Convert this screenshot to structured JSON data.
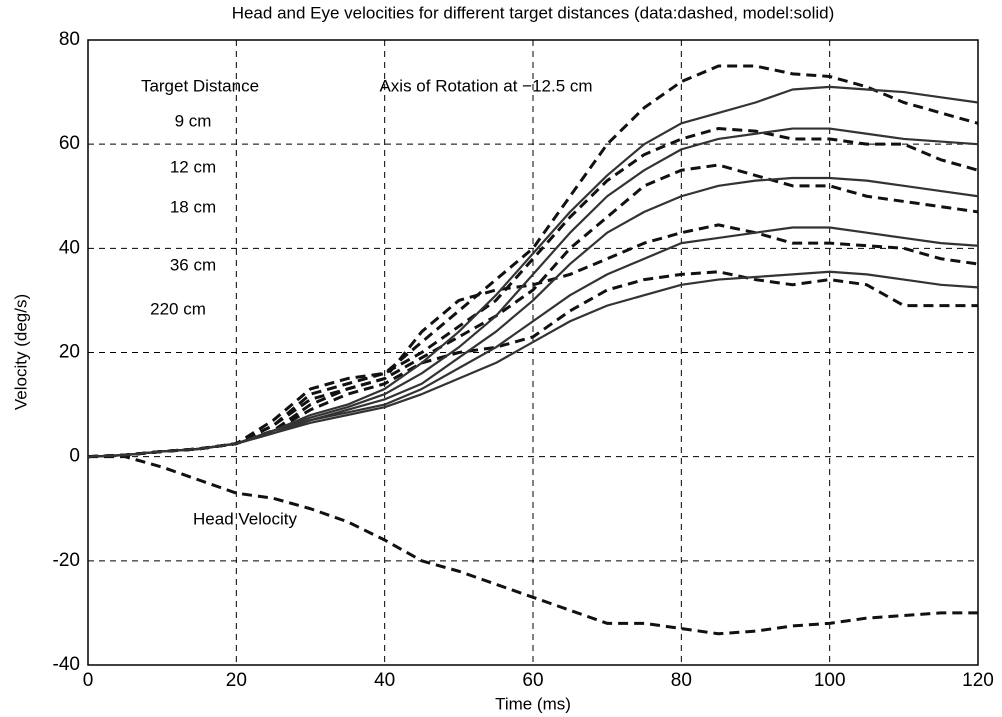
{
  "chart_data": {
    "type": "line",
    "title": "Head and Eye velocities for different target distances (data:dashed, model:solid)",
    "x_label": "Time (ms)",
    "y_label": "Velocity (deg/s)",
    "annotations": [
      "Target Distance",
      "Axis of Rotation at −12.5 cm",
      "9 cm",
      "12 cm",
      "18 cm",
      "36 cm",
      "220 cm",
      "Head Velocity"
    ],
    "x": [
      0,
      5,
      10,
      15,
      20,
      25,
      30,
      35,
      40,
      45,
      50,
      55,
      60,
      65,
      70,
      75,
      80,
      85,
      90,
      95,
      100,
      105,
      110,
      115,
      120
    ],
    "xlim": [
      0,
      120
    ],
    "xticks": [
      0,
      20,
      40,
      60,
      80,
      100,
      120
    ],
    "ylim": [
      -40,
      80
    ],
    "yticks": [
      -40,
      -20,
      0,
      20,
      40,
      60,
      80
    ],
    "grid": true,
    "series": [
      {
        "color": "#111111",
        "style": "dashed",
        "values": [
          0,
          0,
          -2,
          -4.5,
          -7,
          -8,
          -10,
          -12.5,
          -16,
          -20,
          -22,
          -24.5,
          -27,
          -29.5,
          -32,
          -32,
          -33,
          -34,
          -33.5,
          -32.5,
          -32,
          -31,
          -30.5,
          -30,
          -30
        ]
      },
      {
        "color": "#111111",
        "style": "dashed",
        "values": [
          0,
          0.3,
          1,
          1.5,
          2.5,
          6,
          12,
          14,
          16,
          22,
          28,
          34,
          40,
          50,
          60,
          67,
          72,
          75,
          75,
          73.5,
          73,
          71,
          68,
          66,
          64
        ]
      },
      {
        "color": "#111111",
        "style": "dashed",
        "values": [
          0,
          0.3,
          1,
          1.5,
          2.5,
          7,
          13,
          15,
          16,
          20,
          25,
          30,
          38,
          46,
          53,
          58,
          61,
          63,
          62.5,
          61,
          61,
          60,
          60,
          57,
          55
        ]
      },
      {
        "color": "#111111",
        "style": "dashed",
        "values": [
          0,
          0.3,
          1,
          1.5,
          2.5,
          6,
          11,
          13,
          15,
          19,
          23,
          27,
          32,
          40,
          46,
          52,
          55,
          56,
          54,
          52,
          52,
          50,
          49,
          48,
          47
        ]
      },
      {
        "color": "#111111",
        "style": "dashed",
        "values": [
          0,
          0.3,
          1,
          1.5,
          2.5,
          5,
          10,
          13,
          15,
          24,
          30,
          32,
          33,
          35,
          38,
          41,
          43,
          44.5,
          43,
          41,
          41,
          40.5,
          40,
          38,
          37
        ]
      },
      {
        "color": "#111111",
        "style": "dashed",
        "values": [
          0,
          0.3,
          1,
          1.5,
          2.5,
          5,
          9,
          12,
          14,
          18,
          20,
          21,
          23,
          28,
          32,
          34,
          35,
          35.5,
          34,
          33,
          34,
          33,
          29,
          29,
          29
        ]
      },
      {
        "color": "#333333",
        "style": "solid",
        "values": [
          0,
          0.3,
          1,
          1.5,
          2.5,
          5,
          8,
          10,
          13,
          18,
          24,
          31,
          39,
          47,
          54,
          60,
          64,
          66,
          68,
          70.5,
          71,
          70.5,
          70,
          69,
          68
        ]
      },
      {
        "color": "#333333",
        "style": "solid",
        "values": [
          0,
          0.3,
          1,
          1.5,
          2.5,
          5,
          7.5,
          9.5,
          12,
          16,
          21,
          27,
          35,
          43,
          50,
          55,
          59,
          61,
          62,
          63,
          63,
          62,
          61,
          60.5,
          60
        ]
      },
      {
        "color": "#333333",
        "style": "solid",
        "values": [
          0,
          0.3,
          1,
          1.5,
          2.5,
          5,
          7,
          9,
          11,
          14,
          19,
          24,
          30,
          37,
          43,
          47,
          50,
          52,
          53,
          53.5,
          53.5,
          53,
          52,
          51,
          50
        ]
      },
      {
        "color": "#333333",
        "style": "solid",
        "values": [
          0,
          0.3,
          1,
          1.5,
          2.5,
          4.5,
          7,
          8.5,
          10,
          13,
          17,
          21,
          26,
          31,
          35,
          38,
          41,
          42,
          43,
          44,
          44,
          43,
          42,
          41,
          40.5
        ]
      },
      {
        "color": "#333333",
        "style": "solid",
        "values": [
          0,
          0.3,
          1,
          1.5,
          2.5,
          4.5,
          6.5,
          8,
          9.5,
          12,
          15,
          18,
          22,
          26,
          29,
          31,
          33,
          34,
          34.5,
          35,
          35.5,
          35,
          34,
          33,
          32.5
        ]
      }
    ]
  }
}
